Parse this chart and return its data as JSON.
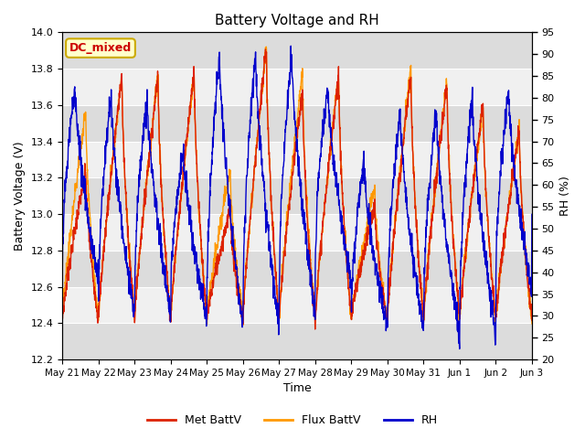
{
  "title": "Battery Voltage and RH",
  "xlabel": "Time",
  "ylabel_left": "Battery Voltage (V)",
  "ylabel_right": "RH (%)",
  "ylim_left": [
    12.2,
    14.0
  ],
  "ylim_right": [
    20,
    95
  ],
  "yticks_left": [
    12.2,
    12.4,
    12.6,
    12.8,
    13.0,
    13.2,
    13.4,
    13.6,
    13.8,
    14.0
  ],
  "yticks_right": [
    20,
    25,
    30,
    35,
    40,
    45,
    50,
    55,
    60,
    65,
    70,
    75,
    80,
    85,
    90,
    95
  ],
  "xtick_labels": [
    "May 21",
    "May 22",
    "May 23",
    "May 24",
    "May 25",
    "May 26",
    "May 27",
    "May 28",
    "May 29",
    "May 30",
    "May 31",
    "Jun 1",
    "Jun 2",
    "Jun 3"
  ],
  "annotation_text": "DC_mixed",
  "annotation_color": "#cc0000",
  "annotation_bg": "#ffffcc",
  "annotation_border": "#ccaa00",
  "color_met": "#dd2200",
  "color_flux": "#ff9900",
  "color_rh": "#0000cc",
  "legend_labels": [
    "Met BattV",
    "Flux BattV",
    "RH"
  ],
  "bg_color_light": "#f0f0f0",
  "bg_color_dark": "#dcdcdc",
  "fig_bg": "#ffffff",
  "n_points": 2000
}
